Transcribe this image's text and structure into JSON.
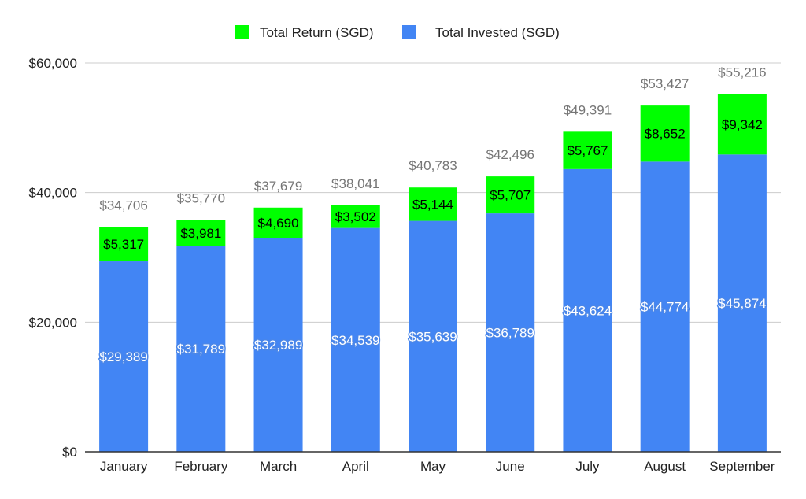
{
  "chart_data": {
    "type": "bar",
    "stacked": true,
    "categories": [
      "January",
      "February",
      "March",
      "April",
      "May",
      "June",
      "July",
      "August",
      "September"
    ],
    "series": [
      {
        "name": "Total Invested (SGD)",
        "color": "#4285f4",
        "values": [
          29389,
          31789,
          32989,
          34539,
          35639,
          36789,
          43624,
          44774,
          45874
        ],
        "labels": [
          "$29,389",
          "$31,789",
          "$32,989",
          "$34,539",
          "$35,639",
          "$36,789",
          "$43,624",
          "$44,774",
          "$45,874"
        ]
      },
      {
        "name": "Total Return (SGD)",
        "color": "#00ff00",
        "values": [
          5317,
          3981,
          4690,
          3502,
          5144,
          5707,
          5767,
          8652,
          9342
        ],
        "labels": [
          "$5,317",
          "$3,981",
          "$4,690",
          "$3,502",
          "$5,144",
          "$5,707",
          "$5,767",
          "$8,652",
          "$9,342"
        ]
      }
    ],
    "totals": [
      "$34,706",
      "$35,770",
      "$37,679",
      "$38,041",
      "$40,783",
      "$42,496",
      "$49,391",
      "$53,427",
      "$55,216"
    ],
    "total_values": [
      34706,
      35770,
      37679,
      38041,
      40783,
      42496,
      49391,
      53427,
      55216
    ],
    "ylim": [
      0,
      60000
    ],
    "yticks": [
      0,
      20000,
      40000,
      60000
    ],
    "ytick_labels": [
      "$0",
      "$20,000",
      "$40,000",
      "$60,000"
    ],
    "legend": {
      "position": "top",
      "items": [
        {
          "label": "Total Return (SGD)",
          "color": "#00ff00"
        },
        {
          "label": "Total Invested (SGD)",
          "color": "#4285f4"
        }
      ]
    },
    "grid": true,
    "title": "",
    "xlabel": "",
    "ylabel": ""
  }
}
